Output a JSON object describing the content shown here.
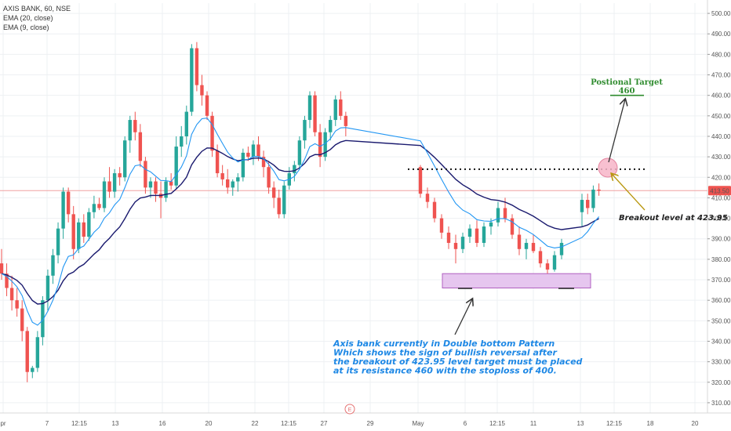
{
  "legend": {
    "symbol_line": "AXIS BANK, 60, NSE",
    "ema20": "EMA (20, close)",
    "ema9": "EMA (9, close)"
  },
  "price_badge": "413.50",
  "event_marker": "E",
  "annotations": {
    "target_title": "Postional Target",
    "target_value": "460",
    "breakout": "Breakout level at 423.95",
    "desc_lines": [
      "Axis bank currently in Double bottom Pattern",
      "Which shows the sign of bullish reversal after",
      "the breakout of 423.95 level target must be placed",
      "at its resistance 460 with the stoploss of 400."
    ]
  },
  "colors": {
    "bull": "#26a69a",
    "bear": "#ef5350",
    "ema20": "#1a1a6e",
    "ema9": "#2196f3",
    "price_line": "#f0a0a0",
    "annotation_blue": "#1e88e5",
    "target_green": "#2e8b2e",
    "zone_fill": "#e6c6ef",
    "zone_stroke": "#b060c0"
  },
  "chart_data": {
    "type": "candlestick",
    "ylim": [
      305,
      505
    ],
    "y_ticks": [
      310,
      320,
      330,
      340,
      350,
      360,
      370,
      380,
      390,
      400,
      410,
      420,
      430,
      440,
      450,
      460,
      470,
      480,
      490,
      500
    ],
    "y_tick_labels": [
      "310.00",
      "320.00",
      "330.00",
      "340.00",
      "350.00",
      "360.00",
      "370.00",
      "380.00",
      "390.00",
      "400.00",
      "410.00",
      "420.00",
      "430.00",
      "440.00",
      "450.00",
      "460.00",
      "470.00",
      "480.00",
      "490.00",
      "500.00"
    ],
    "x_tick_labels": [
      "pr",
      "7",
      "12:15",
      "13",
      "16",
      "20",
      "22",
      "12:15",
      "27",
      "29",
      "May",
      "6",
      "12:15",
      "11",
      "13",
      "12:15",
      "18",
      "20"
    ],
    "last_price": 413.5,
    "breakout_level": 423.95,
    "target_level": 460,
    "candles": [
      {
        "o": 378,
        "h": 385,
        "l": 370,
        "c": 373
      },
      {
        "o": 373,
        "h": 378,
        "l": 362,
        "c": 366
      },
      {
        "o": 366,
        "h": 372,
        "l": 355,
        "c": 360
      },
      {
        "o": 360,
        "h": 366,
        "l": 352,
        "c": 356
      },
      {
        "o": 356,
        "h": 360,
        "l": 340,
        "c": 345
      },
      {
        "o": 345,
        "h": 347,
        "l": 320,
        "c": 325
      },
      {
        "o": 325,
        "h": 328,
        "l": 322,
        "c": 327
      },
      {
        "o": 327,
        "h": 345,
        "l": 325,
        "c": 342
      },
      {
        "o": 342,
        "h": 362,
        "l": 338,
        "c": 360
      },
      {
        "o": 360,
        "h": 375,
        "l": 355,
        "c": 372
      },
      {
        "o": 372,
        "h": 385,
        "l": 368,
        "c": 382
      },
      {
        "o": 382,
        "h": 398,
        "l": 378,
        "c": 395
      },
      {
        "o": 395,
        "h": 415,
        "l": 390,
        "c": 413
      },
      {
        "o": 413,
        "h": 415,
        "l": 398,
        "c": 402
      },
      {
        "o": 402,
        "h": 406,
        "l": 380,
        "c": 385
      },
      {
        "o": 385,
        "h": 400,
        "l": 383,
        "c": 398
      },
      {
        "o": 398,
        "h": 402,
        "l": 388,
        "c": 391
      },
      {
        "o": 391,
        "h": 405,
        "l": 389,
        "c": 403
      },
      {
        "o": 403,
        "h": 411,
        "l": 400,
        "c": 407
      },
      {
        "o": 407,
        "h": 410,
        "l": 404,
        "c": 405
      },
      {
        "o": 405,
        "h": 420,
        "l": 403,
        "c": 418
      },
      {
        "o": 418,
        "h": 425,
        "l": 410,
        "c": 413
      },
      {
        "o": 413,
        "h": 424,
        "l": 410,
        "c": 422
      },
      {
        "o": 422,
        "h": 425,
        "l": 416,
        "c": 420
      },
      {
        "o": 420,
        "h": 440,
        "l": 418,
        "c": 438
      },
      {
        "o": 438,
        "h": 450,
        "l": 432,
        "c": 448
      },
      {
        "o": 448,
        "h": 452,
        "l": 438,
        "c": 442
      },
      {
        "o": 442,
        "h": 446,
        "l": 425,
        "c": 428
      },
      {
        "o": 428,
        "h": 430,
        "l": 412,
        "c": 415
      },
      {
        "o": 415,
        "h": 420,
        "l": 410,
        "c": 418
      },
      {
        "o": 418,
        "h": 420,
        "l": 408,
        "c": 412
      },
      {
        "o": 412,
        "h": 418,
        "l": 400,
        "c": 410
      },
      {
        "o": 410,
        "h": 420,
        "l": 408,
        "c": 418
      },
      {
        "o": 418,
        "h": 422,
        "l": 414,
        "c": 416
      },
      {
        "o": 416,
        "h": 440,
        "l": 414,
        "c": 435
      },
      {
        "o": 435,
        "h": 445,
        "l": 430,
        "c": 440
      },
      {
        "o": 440,
        "h": 455,
        "l": 436,
        "c": 452
      },
      {
        "o": 452,
        "h": 485,
        "l": 450,
        "c": 483
      },
      {
        "o": 483,
        "h": 486,
        "l": 462,
        "c": 465
      },
      {
        "o": 465,
        "h": 470,
        "l": 455,
        "c": 460
      },
      {
        "o": 460,
        "h": 462,
        "l": 448,
        "c": 450
      },
      {
        "o": 450,
        "h": 452,
        "l": 430,
        "c": 433
      },
      {
        "o": 433,
        "h": 436,
        "l": 420,
        "c": 422
      },
      {
        "o": 422,
        "h": 426,
        "l": 416,
        "c": 419
      },
      {
        "o": 419,
        "h": 424,
        "l": 412,
        "c": 415
      },
      {
        "o": 415,
        "h": 419,
        "l": 411,
        "c": 418
      },
      {
        "o": 418,
        "h": 422,
        "l": 413,
        "c": 420
      },
      {
        "o": 420,
        "h": 434,
        "l": 418,
        "c": 432
      },
      {
        "o": 432,
        "h": 435,
        "l": 428,
        "c": 430
      },
      {
        "o": 430,
        "h": 438,
        "l": 426,
        "c": 436
      },
      {
        "o": 436,
        "h": 440,
        "l": 428,
        "c": 430
      },
      {
        "o": 430,
        "h": 433,
        "l": 420,
        "c": 425
      },
      {
        "o": 425,
        "h": 428,
        "l": 412,
        "c": 415
      },
      {
        "o": 415,
        "h": 418,
        "l": 405,
        "c": 410
      },
      {
        "o": 410,
        "h": 414,
        "l": 400,
        "c": 402
      },
      {
        "o": 402,
        "h": 418,
        "l": 400,
        "c": 416
      },
      {
        "o": 416,
        "h": 425,
        "l": 414,
        "c": 422
      },
      {
        "o": 422,
        "h": 428,
        "l": 418,
        "c": 426
      },
      {
        "o": 426,
        "h": 440,
        "l": 424,
        "c": 438
      },
      {
        "o": 438,
        "h": 450,
        "l": 434,
        "c": 448
      },
      {
        "o": 448,
        "h": 462,
        "l": 444,
        "c": 460
      },
      {
        "o": 460,
        "h": 462,
        "l": 440,
        "c": 442
      },
      {
        "o": 442,
        "h": 446,
        "l": 425,
        "c": 430
      },
      {
        "o": 430,
        "h": 444,
        "l": 428,
        "c": 442
      },
      {
        "o": 442,
        "h": 450,
        "l": 438,
        "c": 448
      },
      {
        "o": 448,
        "h": 460,
        "l": 445,
        "c": 458
      },
      {
        "o": 458,
        "h": 462,
        "l": 448,
        "c": 450
      },
      {
        "o": 450,
        "h": 452,
        "l": 440,
        "c": 445
      },
      {
        "o": 425,
        "h": 426,
        "l": 410,
        "c": 412
      },
      {
        "o": 412,
        "h": 415,
        "l": 405,
        "c": 408
      },
      {
        "o": 408,
        "h": 410,
        "l": 398,
        "c": 400
      },
      {
        "o": 400,
        "h": 402,
        "l": 390,
        "c": 393
      },
      {
        "o": 393,
        "h": 396,
        "l": 385,
        "c": 388
      },
      {
        "o": 388,
        "h": 392,
        "l": 378,
        "c": 385
      },
      {
        "o": 385,
        "h": 393,
        "l": 383,
        "c": 391
      },
      {
        "o": 391,
        "h": 397,
        "l": 388,
        "c": 395
      },
      {
        "o": 395,
        "h": 399,
        "l": 386,
        "c": 388
      },
      {
        "o": 388,
        "h": 398,
        "l": 386,
        "c": 396
      },
      {
        "o": 396,
        "h": 400,
        "l": 392,
        "c": 398
      },
      {
        "o": 398,
        "h": 408,
        "l": 396,
        "c": 405
      },
      {
        "o": 405,
        "h": 410,
        "l": 398,
        "c": 400
      },
      {
        "o": 400,
        "h": 402,
        "l": 390,
        "c": 392
      },
      {
        "o": 392,
        "h": 396,
        "l": 382,
        "c": 385
      },
      {
        "o": 385,
        "h": 390,
        "l": 380,
        "c": 388
      },
      {
        "o": 388,
        "h": 392,
        "l": 383,
        "c": 384
      },
      {
        "o": 384,
        "h": 386,
        "l": 376,
        "c": 378
      },
      {
        "o": 378,
        "h": 380,
        "l": 373,
        "c": 375
      },
      {
        "o": 375,
        "h": 384,
        "l": 374,
        "c": 382
      },
      {
        "o": 382,
        "h": 390,
        "l": 380,
        "c": 388
      },
      {
        "o": 403,
        "h": 412,
        "l": 396,
        "c": 409
      },
      {
        "o": 409,
        "h": 412,
        "l": 402,
        "c": 405
      },
      {
        "o": 405,
        "h": 416,
        "l": 403,
        "c": 414
      },
      {
        "o": 414,
        "h": 417,
        "l": 411,
        "c": 413.5
      }
    ]
  }
}
